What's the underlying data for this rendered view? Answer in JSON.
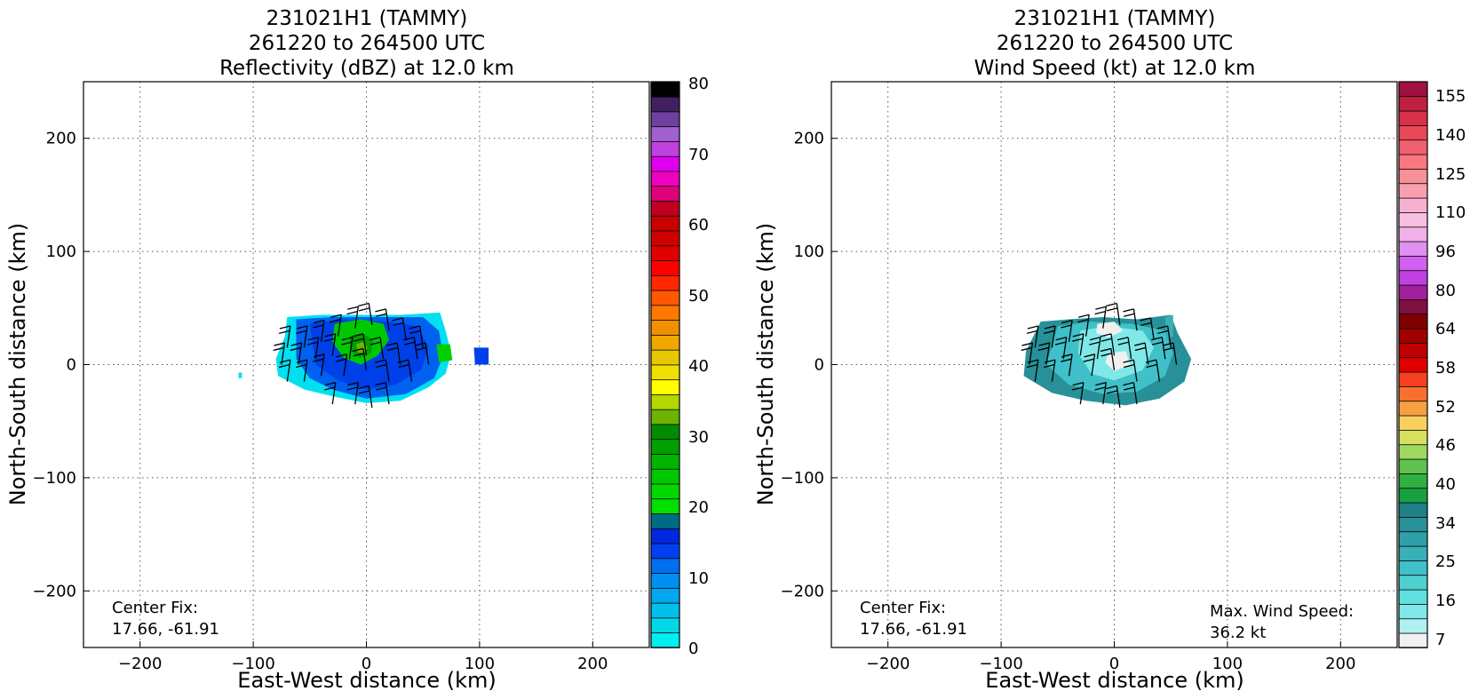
{
  "panels": [
    {
      "title_lines": [
        "231021H1 (TAMMY)",
        "261220 to 264500 UTC",
        "Reflectivity (dBZ) at 12.0 km"
      ],
      "xlabel": "East-West distance (km)",
      "ylabel": "North-South distance (km)",
      "center_fix_label": "Center Fix:",
      "center_fix_value": "17.66, -61.91",
      "colorbar_tick_labels": [
        "80",
        "70",
        "60",
        "50",
        "40",
        "30",
        "20",
        "10",
        "0"
      ]
    },
    {
      "title_lines": [
        "231021H1 (TAMMY)",
        "261220 to 264500 UTC",
        "Wind Speed (kt) at 12.0 km"
      ],
      "xlabel": "East-West distance (km)",
      "ylabel": "North-South distance (km)",
      "center_fix_label": "Center Fix:",
      "center_fix_value": "17.66, -61.91",
      "max_wind_label": "Max. Wind Speed:",
      "max_wind_value": "36.2 kt",
      "colorbar_tick_labels": [
        "155",
        "140",
        "125",
        "110",
        "96",
        "80",
        "64",
        "58",
        "52",
        "46",
        "40",
        "34",
        "25",
        "16",
        "7"
      ]
    }
  ],
  "chart_data": [
    {
      "type": "heatmap",
      "variable": "Reflectivity (dBZ)",
      "xlim": [
        -250,
        250
      ],
      "ylim": [
        -250,
        250
      ],
      "xticks": [
        -200,
        -100,
        0,
        100,
        200
      ],
      "yticks": [
        -200,
        -100,
        0,
        100,
        200
      ],
      "grid": true,
      "colorbar": {
        "min": 0,
        "max": 80,
        "step": 2.5,
        "ticks": [
          0,
          10,
          20,
          30,
          40,
          50,
          60,
          70,
          80
        ],
        "colors": [
          "#00f0f0",
          "#00d8e8",
          "#00c0ec",
          "#00a8f0",
          "#0090f0",
          "#0070f0",
          "#0040f0",
          "#0028e0",
          "#006c84",
          "#00e000",
          "#00d800",
          "#00c800",
          "#00b400",
          "#00a000",
          "#008c00",
          "#6cb400",
          "#b4d800",
          "#ffff00",
          "#f0e000",
          "#e8c800",
          "#f0a800",
          "#f09000",
          "#ff7800",
          "#ff5800",
          "#ff2800",
          "#ff0000",
          "#e00000",
          "#d00000",
          "#c80000",
          "#c00020",
          "#e0007c",
          "#f000c0",
          "#e000f0",
          "#c040e0",
          "#a060d0",
          "#7040a0",
          "#402060",
          "#000000"
        ]
      },
      "echo_region": {
        "x_range": [
          -80,
          75
        ],
        "y_range": [
          -35,
          45
        ],
        "dominant_range_dbz": [
          5,
          25
        ],
        "peak_near": [
          -5,
          10
        ]
      },
      "wind_barbs_present": true
    },
    {
      "type": "heatmap",
      "variable": "Wind Speed (kt)",
      "xlim": [
        -250,
        250
      ],
      "ylim": [
        -250,
        250
      ],
      "xticks": [
        -200,
        -100,
        0,
        100,
        200
      ],
      "yticks": [
        -200,
        -100,
        0,
        100,
        200
      ],
      "grid": true,
      "colorbar": {
        "ticks": [
          7,
          16,
          25,
          34,
          40,
          46,
          52,
          58,
          64,
          80,
          96,
          110,
          125,
          140,
          155
        ],
        "colors": [
          "#f0f0f0",
          "#b0f0f0",
          "#80e8e8",
          "#60e0e0",
          "#50d0d0",
          "#40c0c8",
          "#38b0b8",
          "#30a0a8",
          "#289098",
          "#208088",
          "#18a040",
          "#30b040",
          "#60c050",
          "#a0d860",
          "#d8e060",
          "#f8d060",
          "#f8a040",
          "#f87030",
          "#f84020",
          "#e00000",
          "#c00000",
          "#a00000",
          "#800000",
          "#801040",
          "#a020a0",
          "#c040e0",
          "#d060f0",
          "#e090f0",
          "#f0b0e8",
          "#f8c0e0",
          "#f8b0d0",
          "#f8a0b0",
          "#f89098",
          "#f87880",
          "#f06070",
          "#e84858",
          "#d83048",
          "#c02040",
          "#a01040"
        ]
      },
      "max_wind_speed_kt": 36.2,
      "wind_region": {
        "x_range": [
          -80,
          70
        ],
        "y_range": [
          -40,
          40
        ]
      },
      "wind_barbs_present": true
    }
  ]
}
